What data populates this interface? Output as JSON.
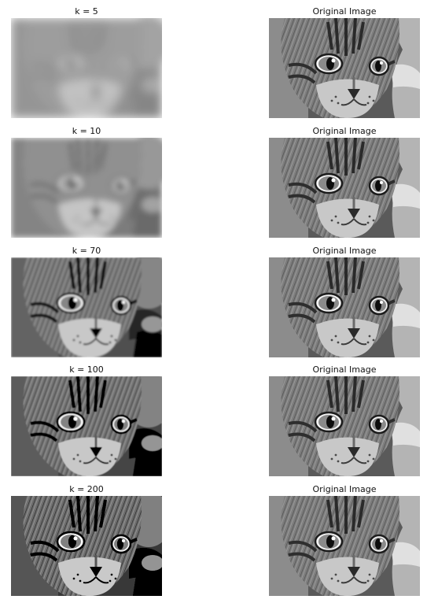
{
  "figure": {
    "rows": [
      {
        "left_title": "k = 5",
        "right_title": "Original Image",
        "blur": 6.0,
        "contrast": 0.55
      },
      {
        "left_title": "k = 10",
        "right_title": "Original Image",
        "blur": 3.6,
        "contrast": 0.75
      },
      {
        "left_title": "k = 70",
        "right_title": "Original Image",
        "blur": 1.0,
        "contrast": 1.05
      },
      {
        "left_title": "k = 100",
        "right_title": "Original Image",
        "blur": 0.6,
        "contrast": 1.1
      },
      {
        "left_title": "k = 200",
        "right_title": "Original Image",
        "blur": 0.3,
        "contrast": 1.15
      }
    ]
  }
}
